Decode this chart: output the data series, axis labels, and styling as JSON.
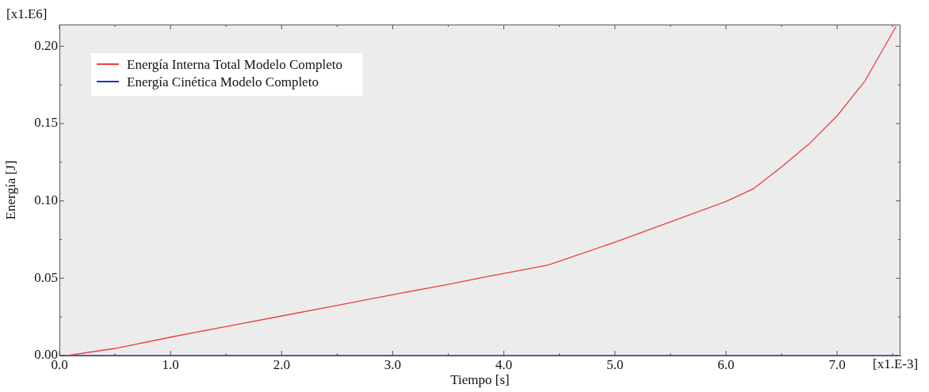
{
  "chart_data": {
    "type": "line",
    "xlabel": "Tiempo [s]",
    "ylabel": "Energía [J]",
    "annotations": [
      "[x1.E6]",
      "[x1.E-3]"
    ],
    "series": [
      {
        "name": "Energía Interna Total Modelo Completo",
        "color": "#e8403f",
        "x": [
          0.07,
          0.5,
          1.0,
          1.5,
          2.0,
          2.5,
          3.0,
          3.5,
          3.89,
          4.0,
          4.4,
          5.0,
          5.5,
          6.0,
          6.25,
          6.5,
          6.75,
          7.0,
          7.25,
          7.53
        ],
        "values": [
          0,
          0.0046,
          0.0119,
          0.0188,
          0.0256,
          0.0325,
          0.0394,
          0.046,
          0.0516,
          0.053,
          0.0586,
          0.0733,
          0.0865,
          0.0996,
          0.108,
          0.122,
          0.137,
          0.155,
          0.1775,
          0.2127
        ]
      },
      {
        "name": "Energía Cinética Modelo Completo",
        "color": "#1f2fd8",
        "x": [
          0,
          7.55
        ],
        "values": [
          0,
          0
        ]
      }
    ],
    "xlim": [
      0,
      7.57
    ],
    "ylim": [
      0,
      0.214
    ],
    "xticks": [
      {
        "value": 0,
        "label": "0.0"
      },
      {
        "value": 0.5,
        "label": null
      },
      {
        "value": 1,
        "label": "1.0"
      },
      {
        "value": 1.5,
        "label": null
      },
      {
        "value": 2,
        "label": "2.0"
      },
      {
        "value": 2.5,
        "label": null
      },
      {
        "value": 3,
        "label": "3.0"
      },
      {
        "value": 3.5,
        "label": null
      },
      {
        "value": 4,
        "label": "4.0"
      },
      {
        "value": 4.5,
        "label": null
      },
      {
        "value": 5,
        "label": "5.0"
      },
      {
        "value": 5.5,
        "label": null
      },
      {
        "value": 6,
        "label": "6.0"
      },
      {
        "value": 6.5,
        "label": null
      },
      {
        "value": 7,
        "label": "7.0"
      },
      {
        "value": 7.5,
        "label": null
      }
    ],
    "yticks": [
      {
        "value": 0,
        "label": "0.00"
      },
      {
        "value": 0.025,
        "label": null
      },
      {
        "value": 0.05,
        "label": "0.05"
      },
      {
        "value": 0.075,
        "label": null
      },
      {
        "value": 0.1,
        "label": "0.10"
      },
      {
        "value": 0.125,
        "label": null
      },
      {
        "value": 0.15,
        "label": "0.15"
      },
      {
        "value": 0.175,
        "label": null
      },
      {
        "value": 0.2,
        "label": "0.20"
      }
    ],
    "grid": false,
    "legend": "top left",
    "marker": "none",
    "line_style": "solid"
  }
}
